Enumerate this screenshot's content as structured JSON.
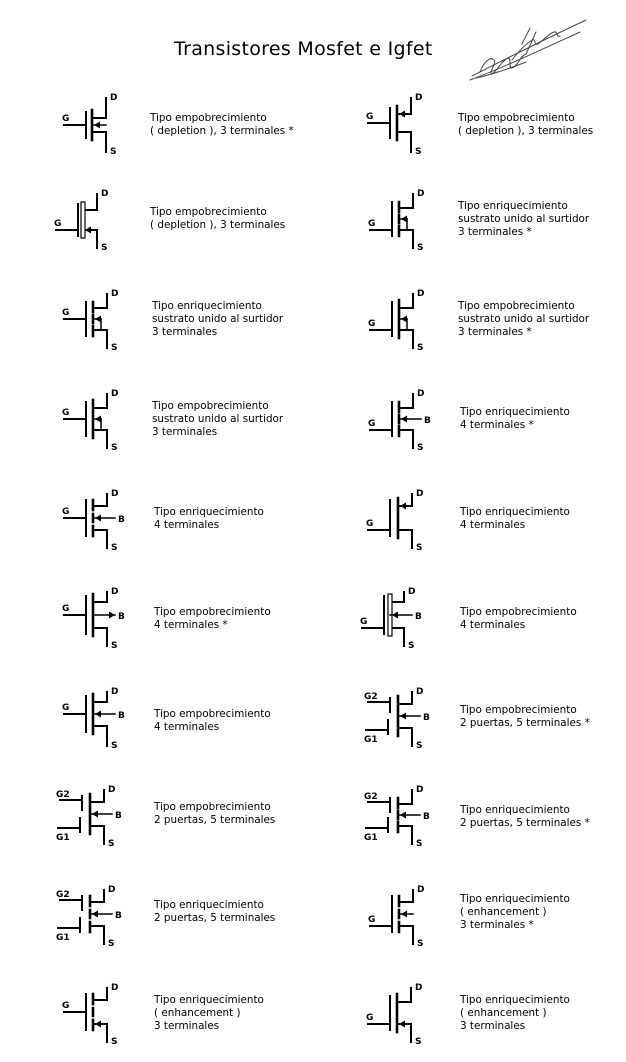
{
  "title": "Transistores Mosfet e Igfet",
  "entries": [
    {
      "id": "l1",
      "lines": [
        "Tipo empobrecimiento",
        "( depletion ), 3 terminales *"
      ]
    },
    {
      "id": "r1",
      "lines": [
        "Tipo empobrecimiento",
        "( depletion ), 3 terminales"
      ]
    },
    {
      "id": "l2",
      "lines": [
        "Tipo empobrecimiento",
        "( depletion ), 3 terminales"
      ]
    },
    {
      "id": "r2",
      "lines": [
        "Tipo enriquecimiento",
        "sustrato unido al surtidor",
        "3 terminales *"
      ]
    },
    {
      "id": "l3",
      "lines": [
        "Tipo enriquecimiento",
        "sustrato unido al surtidor",
        "3 terminales"
      ]
    },
    {
      "id": "r3",
      "lines": [
        "Tipo empobrecimiento",
        "sustrato unido al surtidor",
        "3 terminales *"
      ]
    },
    {
      "id": "l4",
      "lines": [
        "Tipo empobrecimiento",
        "sustrato unido al surtidor",
        "3 terminales"
      ]
    },
    {
      "id": "r4",
      "lines": [
        "Tipo enriquecimiento",
        "4 terminales *"
      ]
    },
    {
      "id": "l5",
      "lines": [
        "Tipo enriquecimiento",
        "4 terminales"
      ]
    },
    {
      "id": "r5",
      "lines": [
        "Tipo enriquecimiento",
        "4 terminales"
      ]
    },
    {
      "id": "l6",
      "lines": [
        "Tipo empobrecimiento",
        "4 terminales *"
      ]
    },
    {
      "id": "r6",
      "lines": [
        "Tipo empobrecimiento",
        "4 terminales"
      ]
    },
    {
      "id": "l7",
      "lines": [
        "Tipo empobrecimiento",
        "4 terminales"
      ]
    },
    {
      "id": "r7",
      "lines": [
        "Tipo empobrecimiento",
        "2 puertas, 5 terminales *"
      ]
    },
    {
      "id": "l8",
      "lines": [
        "Tipo empobrecimiento",
        "2 puertas, 5 terminales"
      ]
    },
    {
      "id": "r8",
      "lines": [
        "Tipo enriquecimiento",
        "2 puertas, 5 terminales *"
      ]
    },
    {
      "id": "l9",
      "lines": [
        "Tipo enriquecimiento",
        "2 puertas, 5 terminales"
      ]
    },
    {
      "id": "r9",
      "lines": [
        "Tipo enriquecimiento",
        "( enhancement )",
        "3 terminales *"
      ]
    },
    {
      "id": "l10",
      "lines": [
        "Tipo enriquecimiento",
        "( enhancement )",
        "3 terminales"
      ]
    },
    {
      "id": "r10",
      "lines": [
        "Tipo enriquecimiento",
        "( enhancement )",
        "3 terminales"
      ]
    }
  ],
  "pins": {
    "drain": "D",
    "source": "S",
    "gate": "G",
    "gate1": "G1",
    "gate2": "G2",
    "bulk": "B"
  }
}
